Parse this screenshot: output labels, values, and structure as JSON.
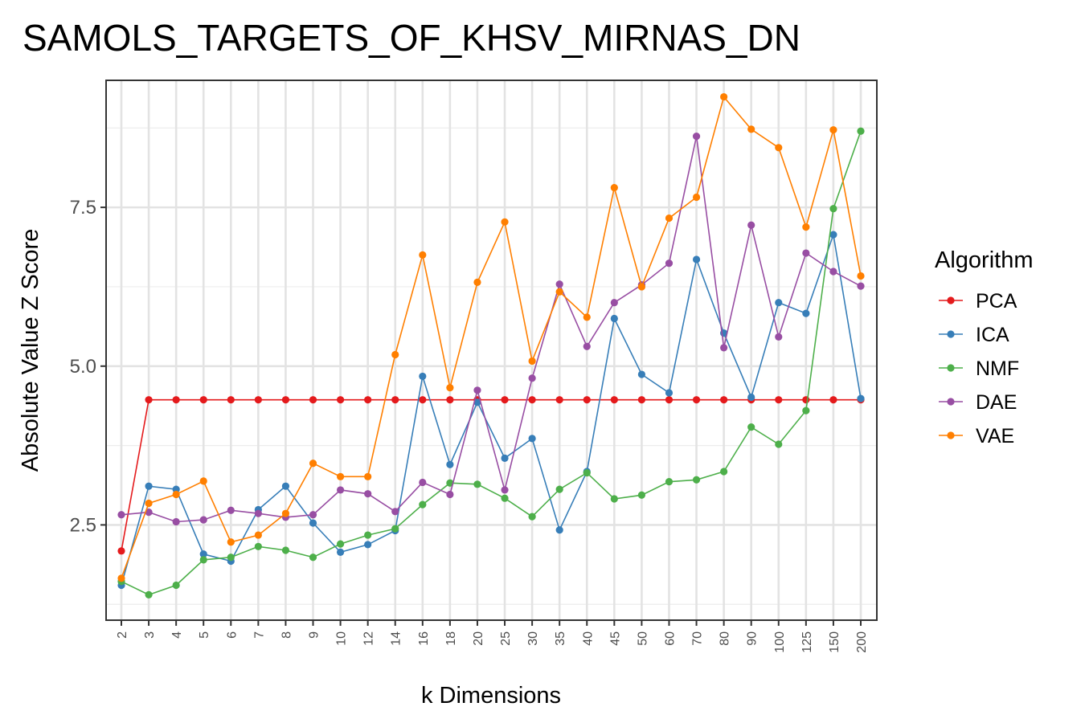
{
  "chart_data": {
    "type": "line",
    "title": "SAMOLS_TARGETS_OF_KHSV_MIRNAS_DN",
    "xlabel": "k Dimensions",
    "ylabel": "Absolute Value Z Score",
    "categories": [
      "2",
      "3",
      "4",
      "5",
      "6",
      "7",
      "8",
      "9",
      "10",
      "12",
      "14",
      "16",
      "18",
      "20",
      "25",
      "30",
      "35",
      "40",
      "45",
      "50",
      "60",
      "70",
      "80",
      "90",
      "100",
      "125",
      "150",
      "200"
    ],
    "ylim": [
      1.0,
      9.5
    ],
    "yticks": [
      2.5,
      5.0,
      7.5
    ],
    "ytick_labels": [
      "2.5",
      "5.0",
      "7.5"
    ],
    "grid": true,
    "legend": {
      "title": "Algorithm",
      "position": "right"
    },
    "series": [
      {
        "name": "PCA",
        "color": "#E41A1C",
        "values": [
          2.09,
          4.47,
          4.47,
          4.47,
          4.47,
          4.47,
          4.47,
          4.47,
          4.47,
          4.47,
          4.47,
          4.47,
          4.47,
          4.47,
          4.47,
          4.47,
          4.47,
          4.47,
          4.47,
          4.47,
          4.47,
          4.47,
          4.47,
          4.47,
          4.47,
          4.47,
          4.47,
          4.47
        ]
      },
      {
        "name": "ICA",
        "color": "#377EB8",
        "values": [
          1.55,
          3.11,
          3.06,
          2.04,
          1.93,
          2.74,
          3.11,
          2.53,
          2.07,
          2.19,
          2.41,
          4.84,
          3.45,
          4.43,
          3.55,
          3.86,
          2.42,
          3.34,
          5.75,
          4.87,
          4.58,
          6.68,
          5.52,
          4.51,
          6.0,
          5.83,
          7.07,
          4.49
        ]
      },
      {
        "name": "NMF",
        "color": "#4DAF4A",
        "values": [
          1.61,
          1.4,
          1.55,
          1.95,
          1.99,
          2.16,
          2.1,
          1.99,
          2.2,
          2.34,
          2.44,
          2.82,
          3.16,
          3.14,
          2.92,
          2.63,
          3.06,
          3.32,
          2.91,
          2.97,
          3.18,
          3.21,
          3.34,
          4.04,
          3.77,
          4.3,
          7.48,
          8.7
        ]
      },
      {
        "name": "DAE",
        "color": "#984EA3",
        "values": [
          2.66,
          2.7,
          2.55,
          2.58,
          2.73,
          2.68,
          2.62,
          2.66,
          3.05,
          2.99,
          2.71,
          3.17,
          2.98,
          4.62,
          3.05,
          4.81,
          6.29,
          5.31,
          6.0,
          6.28,
          6.62,
          8.62,
          5.29,
          7.22,
          5.46,
          6.78,
          6.49,
          6.26
        ]
      },
      {
        "name": "VAE",
        "color": "#FF7F00",
        "values": [
          1.66,
          2.84,
          2.98,
          3.19,
          2.23,
          2.34,
          2.68,
          3.47,
          3.26,
          3.26,
          5.18,
          6.75,
          4.66,
          6.32,
          7.27,
          5.08,
          6.17,
          5.77,
          7.81,
          6.25,
          7.33,
          7.66,
          9.24,
          8.73,
          8.44,
          7.19,
          8.72,
          6.42
        ]
      }
    ]
  }
}
